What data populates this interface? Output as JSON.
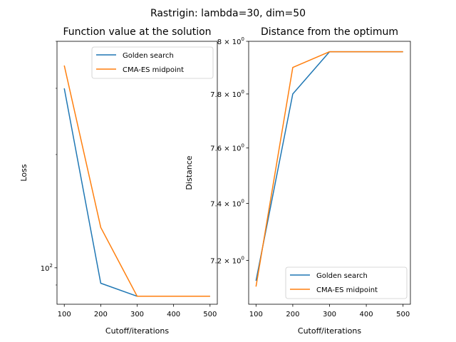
{
  "suptitle": "Rastrigin: lambda=30, dim=50",
  "colors": {
    "golden": "#1f77b4",
    "cma": "#ff7f0e"
  },
  "chart_data": [
    {
      "type": "line",
      "title": "Function value at the solution",
      "xlabel": "Cutoff/iterations",
      "ylabel": "Loss",
      "yscale": "log",
      "x": [
        100,
        200,
        300,
        400,
        500
      ],
      "xlim": [
        80,
        520
      ],
      "xticks": [
        100,
        200,
        300,
        400,
        500
      ],
      "ylim": [
        80,
        400
      ],
      "yticks": [
        {
          "value": 100,
          "base": "10",
          "exp": "2"
        }
      ],
      "legend": "top-right",
      "series": [
        {
          "name": "Golden search",
          "color": "#1f77b4",
          "values": [
            300,
            91,
            84,
            84,
            84
          ]
        },
        {
          "name": "CMA-ES midpoint",
          "color": "#ff7f0e",
          "values": [
            345,
            128,
            84,
            84,
            84
          ]
        }
      ]
    },
    {
      "type": "line",
      "title": "Distance from the optimum",
      "xlabel": "Cutoff/iterations",
      "ylabel": "Distance",
      "yscale": "log",
      "x": [
        100,
        200,
        300,
        400,
        500
      ],
      "xlim": [
        80,
        520
      ],
      "xticks": [
        100,
        200,
        300,
        400,
        500
      ],
      "ylim": [
        7.05,
        8.0
      ],
      "yticks": [
        {
          "value": 7.2,
          "base": "7.2 × 10",
          "exp": "0"
        },
        {
          "value": 7.4,
          "base": "7.4 × 10",
          "exp": "0"
        },
        {
          "value": 7.6,
          "base": "7.6 × 10",
          "exp": "0"
        },
        {
          "value": 7.8,
          "base": "7.8 × 10",
          "exp": "0"
        },
        {
          "value": 8.0,
          "base": "8 × 10",
          "exp": "0"
        }
      ],
      "legend": "bottom-right",
      "series": [
        {
          "name": "Golden search",
          "color": "#1f77b4",
          "values": [
            7.13,
            7.8,
            7.96,
            7.96,
            7.96
          ]
        },
        {
          "name": "CMA-ES midpoint",
          "color": "#ff7f0e",
          "values": [
            7.11,
            7.9,
            7.96,
            7.96,
            7.96
          ]
        }
      ]
    }
  ]
}
